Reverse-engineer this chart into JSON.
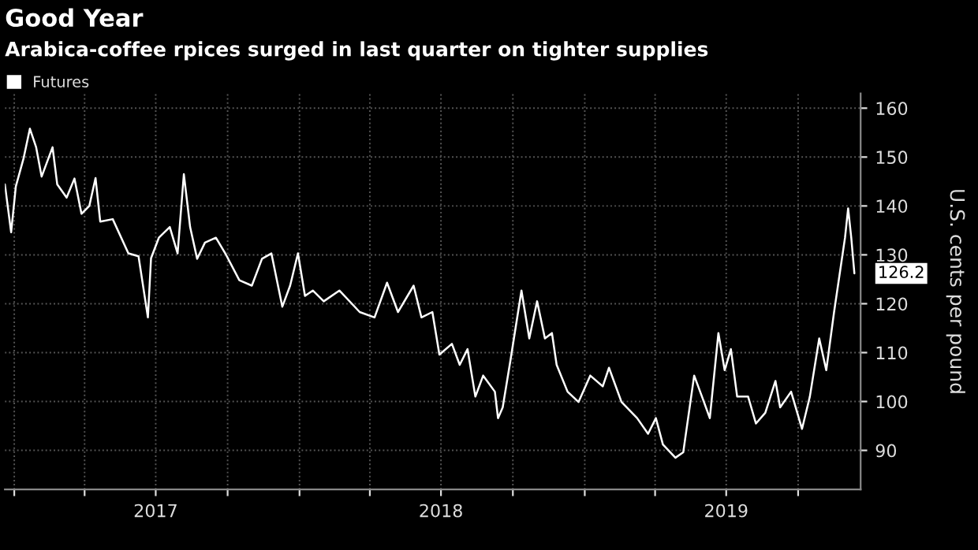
{
  "chart_data": {
    "type": "line",
    "title": "Good Year",
    "subtitle": "Arabica-coffee rpices surged in last quarter on tighter supplies",
    "ylabel": "U.S. cents per pound",
    "x": [
      "2016-12-20",
      "2016-12-28",
      "2017-01-03",
      "2017-01-13",
      "2017-01-21",
      "2017-01-29",
      "2017-02-05",
      "2017-02-19",
      "2017-02-25",
      "2017-03-09",
      "2017-03-19",
      "2017-03-28",
      "2017-04-07",
      "2017-04-15",
      "2017-04-21",
      "2017-05-07",
      "2017-05-27",
      "2017-06-09",
      "2017-06-21",
      "2017-06-25",
      "2017-07-05",
      "2017-07-19",
      "2017-07-29",
      "2017-08-06",
      "2017-08-14",
      "2017-08-23",
      "2017-09-02",
      "2017-09-16",
      "2017-09-28",
      "2017-10-16",
      "2017-11-01",
      "2017-11-14",
      "2017-11-26",
      "2017-12-10",
      "2017-12-20",
      "2017-12-30",
      "2018-01-08",
      "2018-01-18",
      "2018-02-01",
      "2018-02-21",
      "2018-03-19",
      "2018-04-07",
      "2018-04-23",
      "2018-05-07",
      "2018-05-27",
      "2018-06-06",
      "2018-06-20",
      "2018-06-29",
      "2018-07-15",
      "2018-07-25",
      "2018-08-04",
      "2018-08-14",
      "2018-08-24",
      "2018-09-08",
      "2018-09-12",
      "2018-09-18",
      "2018-09-28",
      "2018-10-12",
      "2018-10-22",
      "2018-11-01",
      "2018-11-11",
      "2018-11-20",
      "2018-11-26",
      "2018-12-10",
      "2018-12-24",
      "2019-01-08",
      "2019-01-24",
      "2019-02-01",
      "2019-02-17",
      "2019-03-09",
      "2019-03-23",
      "2019-04-02",
      "2019-04-11",
      "2019-04-27",
      "2019-05-07",
      "2019-05-21",
      "2019-05-31",
      "2019-06-10",
      "2019-06-21",
      "2019-06-29",
      "2019-07-07",
      "2019-07-15",
      "2019-07-29",
      "2019-08-08",
      "2019-08-20",
      "2019-09-02",
      "2019-09-08",
      "2019-09-22",
      "2019-10-06",
      "2019-10-16",
      "2019-10-28",
      "2019-11-06",
      "2019-11-16",
      "2019-11-30",
      "2019-12-04",
      "2019-12-08",
      "2019-12-12"
    ],
    "series": [
      {
        "name": "Futures",
        "color": "#ffffff",
        "values": [
          144.4,
          134.6,
          144,
          149.8,
          155.8,
          152,
          146,
          152,
          144.4,
          141.7,
          145.6,
          138.4,
          140,
          145.7,
          136.8,
          137.3,
          130.3,
          129.7,
          117.2,
          129.3,
          133.5,
          135.7,
          130.3,
          146.5,
          135.7,
          129.2,
          132.5,
          133.5,
          130.3,
          124.8,
          123.7,
          129.2,
          130.3,
          119.4,
          123.7,
          130.3,
          121.6,
          122.7,
          120.5,
          122.7,
          118.3,
          117.2,
          124.3,
          118.3,
          123.7,
          117.2,
          118.3,
          109.6,
          111.8,
          107.5,
          110.7,
          101,
          105.3,
          102,
          96.6,
          98.8,
          108.5,
          122.7,
          112.9,
          120.5,
          112.9,
          114,
          107.5,
          102,
          99.9,
          105.3,
          103.1,
          106.9,
          99.9,
          96.6,
          93.4,
          96.6,
          91.2,
          88.5,
          89.6,
          105.3,
          101,
          96.6,
          114,
          106.4,
          110.7,
          101,
          101,
          95.5,
          97.7,
          104.2,
          98.8,
          102,
          94.4,
          101,
          112.9,
          106.4,
          118.3,
          133.5,
          139.5,
          133.5,
          126.2
        ]
      }
    ],
    "annotations": [
      {
        "text": "126.2",
        "x": "2019-12-12",
        "y": 126.2
      }
    ],
    "xlim": [
      "2016-12-20",
      "2019-12-20"
    ],
    "xticks": [
      {
        "value": "2017-01-01",
        "label": null
      },
      {
        "value": "2017-04-01",
        "label": null
      },
      {
        "value": "2017-07-01",
        "label": "2017"
      },
      {
        "value": "2017-10-01",
        "label": null
      },
      {
        "value": "2018-01-01",
        "label": null
      },
      {
        "value": "2018-04-01",
        "label": null
      },
      {
        "value": "2018-07-01",
        "label": "2018"
      },
      {
        "value": "2018-10-01",
        "label": null
      },
      {
        "value": "2019-01-01",
        "label": null
      },
      {
        "value": "2019-04-01",
        "label": null
      },
      {
        "value": "2019-07-01",
        "label": "2019"
      },
      {
        "value": "2019-10-01",
        "label": null
      }
    ],
    "ylim": [
      82,
      163
    ],
    "yticks": [
      90,
      100,
      110,
      120,
      130,
      140,
      150,
      160
    ],
    "grid": true,
    "legend": "top left",
    "line_style": "solid",
    "marker": "none"
  }
}
